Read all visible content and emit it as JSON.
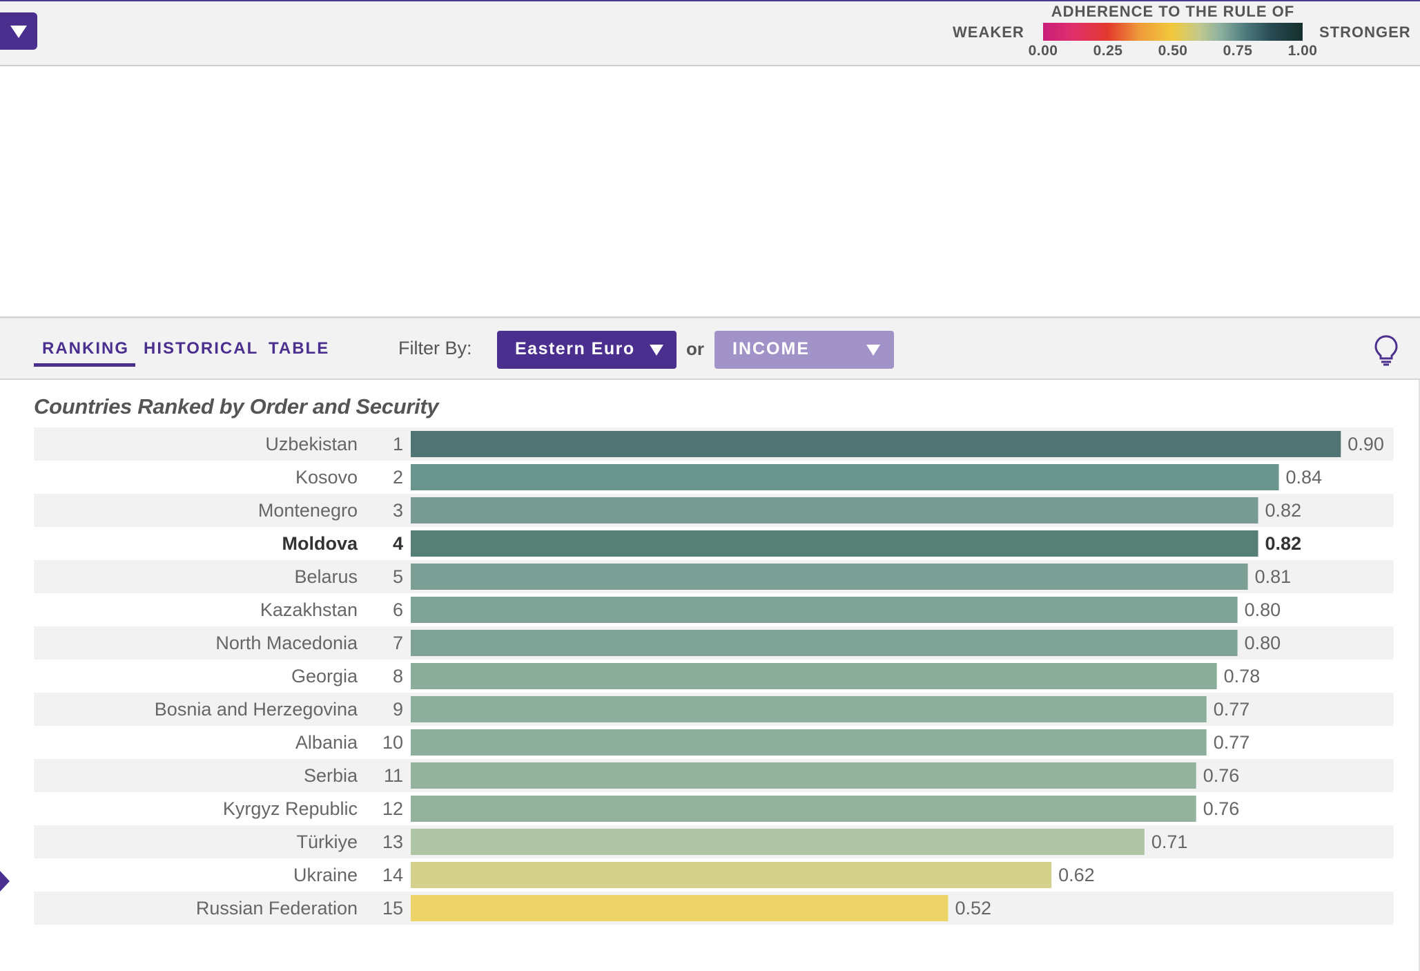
{
  "legend": {
    "title": "ADHERENCE TO THE RULE OF LAW",
    "weaker_label": "WEAKER",
    "stronger_label": "STRONGER",
    "ticks": [
      "0.00",
      "0.25",
      "0.50",
      "0.75",
      "1.00"
    ]
  },
  "tabs": {
    "ranking": "RANKING",
    "historical": "HISTORICAL",
    "table": "TABLE"
  },
  "filter": {
    "label": "Filter By:",
    "region_value": "Eastern Euro",
    "or_label": "or",
    "income_value": "INCOME"
  },
  "chart_data": {
    "type": "bar",
    "title": "Countries Ranked by Order and Security",
    "highlighted": "Moldova",
    "xlim": [
      0,
      1
    ],
    "categories": [
      "Uzbekistan",
      "Kosovo",
      "Montenegro",
      "Moldova",
      "Belarus",
      "Kazakhstan",
      "North Macedonia",
      "Georgia",
      "Bosnia and Herzegovina",
      "Albania",
      "Serbia",
      "Kyrgyz Republic",
      "Türkiye",
      "Ukraine",
      "Russian Federation"
    ],
    "ranks": [
      "1",
      "2",
      "3",
      "4",
      "5",
      "6",
      "7",
      "8",
      "9",
      "10",
      "11",
      "12",
      "13",
      "14",
      "15"
    ],
    "values": [
      0.9,
      0.84,
      0.82,
      0.82,
      0.81,
      0.8,
      0.8,
      0.78,
      0.77,
      0.77,
      0.76,
      0.76,
      0.71,
      0.62,
      0.52
    ],
    "value_labels": [
      "0.90",
      "0.84",
      "0.82",
      "0.82",
      "0.81",
      "0.80",
      "0.80",
      "0.78",
      "0.77",
      "0.77",
      "0.76",
      "0.76",
      "0.71",
      "0.62",
      "0.52"
    ],
    "colors": [
      "#4f7473",
      "#6a958d",
      "#779b92",
      "#567f76",
      "#7b9f95",
      "#80a398",
      "#80a398",
      "#8aac9b",
      "#8dae9c",
      "#8dae9c",
      "#93b39f",
      "#93b39f",
      "#b0c5a6",
      "#d3d18b",
      "#edd469"
    ]
  }
}
